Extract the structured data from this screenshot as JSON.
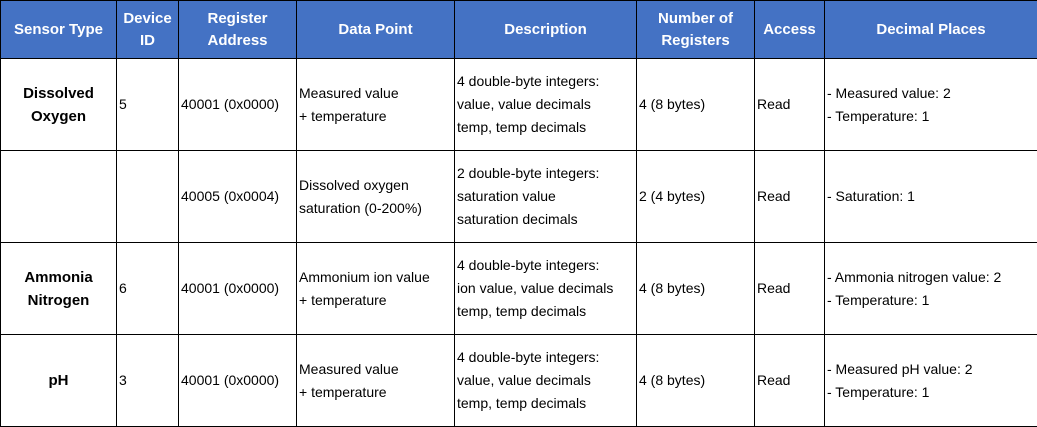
{
  "table": {
    "headers": [
      "Sensor Type",
      "Device ID",
      "Register Address",
      "Data Point",
      "Description",
      "Number of Registers",
      "Access",
      "Decimal Places"
    ],
    "rows": [
      {
        "sensor_type": [
          "Dissolved",
          "Oxygen"
        ],
        "device_id": "5",
        "register_address": "40001 (0x0000)",
        "data_point": [
          "Measured value",
          "+ temperature"
        ],
        "description": [
          "4 double-byte integers:",
          "value, value decimals",
          "temp, temp decimals"
        ],
        "registers": "4 (8 bytes)",
        "access": "Read",
        "decimal_places": [
          "- Measured value: 2",
          "- Temperature: 1"
        ]
      },
      {
        "register_address": "40005 (0x0004)",
        "data_point": [
          "Dissolved oxygen",
          "saturation (0-200%)"
        ],
        "description": [
          "2 double-byte integers:",
          "saturation value",
          "saturation decimals"
        ],
        "registers": "2 (4 bytes)",
        "access": "Read",
        "decimal_places": [
          "- Saturation: 1"
        ]
      },
      {
        "sensor_type": [
          "Ammonia",
          "Nitrogen"
        ],
        "device_id": "6",
        "register_address": "40001 (0x0000)",
        "data_point": [
          "Ammonium ion value",
          "+ temperature"
        ],
        "description": [
          "4 double-byte integers:",
          "ion value, value decimals",
          "temp, temp decimals"
        ],
        "registers": "4 (8 bytes)",
        "access": "Read",
        "decimal_places": [
          "- Ammonia nitrogen value: 2",
          "- Temperature: 1"
        ]
      },
      {
        "sensor_type": [
          "pH"
        ],
        "device_id": "3",
        "register_address": "40001 (0x0000)",
        "data_point": [
          "Measured value",
          "+ temperature"
        ],
        "description": [
          "4 double-byte integers:",
          "value, value decimals",
          "temp, temp decimals"
        ],
        "registers": "4 (8 bytes)",
        "access": "Read",
        "decimal_places": [
          "- Measured pH value: 2",
          "- Temperature: 1"
        ]
      }
    ]
  }
}
